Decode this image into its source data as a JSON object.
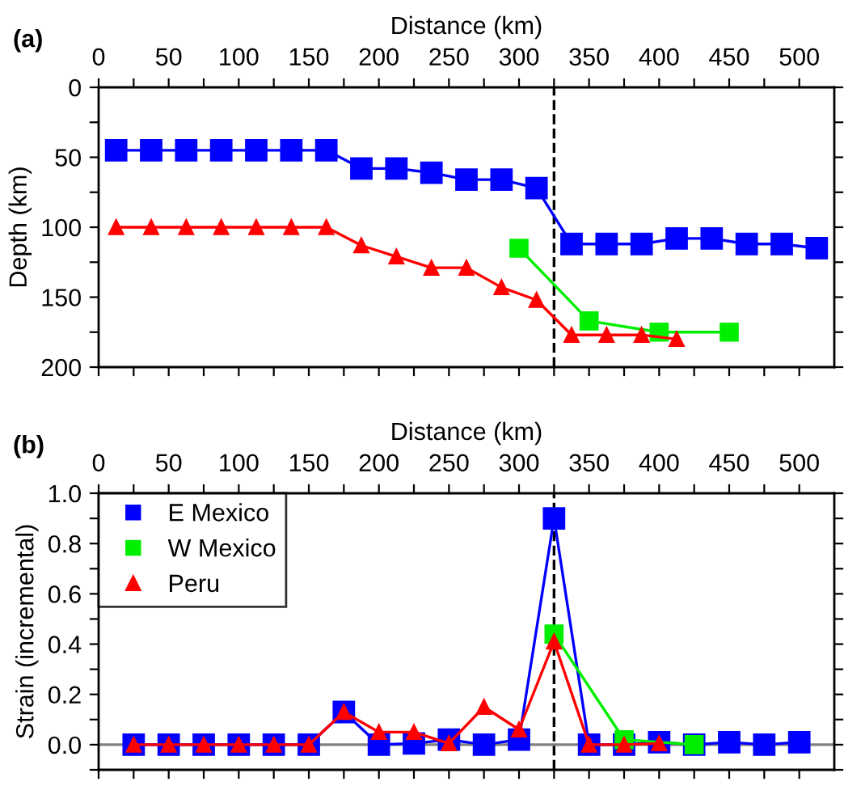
{
  "chart_data": [
    {
      "type": "line",
      "title": "(a)",
      "xlabel": "Distance (km)",
      "ylabel": "Depth (km)",
      "xlim": [
        0,
        525
      ],
      "ylim": [
        200,
        0
      ],
      "xticks": [
        0,
        {
          "value": 25,
          "label": null
        },
        50,
        {
          "value": 75,
          "label": null
        },
        100,
        {
          "value": 125,
          "label": null
        },
        150,
        {
          "value": 175,
          "label": null
        },
        200,
        {
          "value": 225,
          "label": null
        },
        250,
        {
          "value": 275,
          "label": null
        },
        300,
        {
          "value": 325,
          "label": null
        },
        350,
        {
          "value": 375,
          "label": null
        },
        400,
        {
          "value": 425,
          "label": null
        },
        450,
        {
          "value": 475,
          "label": null
        },
        500
      ],
      "yticks": [
        0,
        {
          "value": 25,
          "label": null
        },
        50,
        {
          "value": 75,
          "label": null
        },
        100,
        {
          "value": 125,
          "label": null
        },
        150,
        {
          "value": 175,
          "label": null
        },
        200
      ],
      "grid": false,
      "legend": false,
      "line_style": "solid",
      "ref_lines": [
        {
          "axis": "x",
          "value": 325,
          "color": "#000000",
          "line_style": "dashed"
        }
      ],
      "series": [
        {
          "color": "#0000ff",
          "marker": "square",
          "x": [
            12.5,
            37.5,
            62.5,
            87.5,
            112.5,
            137.5,
            162.5,
            187.5,
            212.5,
            237.5,
            262.5,
            287.5,
            312.5,
            337.5,
            362.5,
            387.5,
            412.5,
            437.5,
            462.5,
            487.5,
            512.5
          ],
          "values": [
            45,
            45,
            45,
            45,
            45,
            45,
            45,
            58,
            58,
            61,
            66,
            66,
            72,
            112,
            112,
            112,
            108,
            108,
            112,
            112,
            115
          ]
        },
        {
          "color": "#00ee00",
          "marker": "square",
          "x": [
            300,
            350,
            400,
            450
          ],
          "values": [
            115,
            167,
            175,
            175
          ]
        },
        {
          "color": "#ff0000",
          "marker": "triangle",
          "x": [
            12.5,
            37.5,
            62.5,
            87.5,
            112.5,
            137.5,
            162.5,
            187.5,
            212.5,
            237.5,
            262.5,
            287.5,
            312.5,
            337.5,
            362.5,
            387.5,
            412.5
          ],
          "values": [
            100,
            100,
            100,
            100,
            100,
            100,
            100,
            113,
            121,
            129,
            129,
            143,
            152,
            177,
            177,
            177,
            180
          ]
        }
      ]
    },
    {
      "type": "line",
      "title": "(b)",
      "xlabel": "Distance (km)",
      "ylabel": "Strain (incremental)",
      "xlim": [
        0,
        525
      ],
      "ylim": [
        -0.1,
        1.0
      ],
      "xticks": [
        0,
        {
          "value": 25,
          "label": null
        },
        50,
        {
          "value": 75,
          "label": null
        },
        100,
        {
          "value": 125,
          "label": null
        },
        150,
        {
          "value": 175,
          "label": null
        },
        200,
        {
          "value": 225,
          "label": null
        },
        250,
        {
          "value": 275,
          "label": null
        },
        300,
        {
          "value": 325,
          "label": null
        },
        350,
        {
          "value": 375,
          "label": null
        },
        400,
        {
          "value": 425,
          "label": null
        },
        450,
        {
          "value": 475,
          "label": null
        },
        500
      ],
      "yticks": [
        {
          "value": -0.1,
          "label": null
        },
        {
          "value": 0,
          "label": "0.0"
        },
        {
          "value": 0.1,
          "label": null
        },
        0.2,
        {
          "value": 0.3,
          "label": null
        },
        0.4,
        {
          "value": 0.5,
          "label": null
        },
        0.6,
        {
          "value": 0.7,
          "label": null
        },
        0.8,
        {
          "value": 0.9,
          "label": null
        },
        {
          "value": 1.0,
          "label": "1.0"
        }
      ],
      "grid": false,
      "legend": "top left",
      "line_style": "solid",
      "ref_lines": [
        {
          "axis": "x",
          "value": 325,
          "color": "#000000",
          "line_style": "dashed"
        },
        {
          "axis": "y",
          "value": 0,
          "color": "#808080",
          "line_style": "solid"
        }
      ],
      "series": [
        {
          "name": "E Mexico",
          "color": "#0000ff",
          "marker": "square",
          "x": [
            25,
            50,
            75,
            100,
            125,
            150,
            175,
            200,
            225,
            250,
            275,
            300,
            325,
            350,
            375,
            400,
            425,
            450,
            475,
            500
          ],
          "values": [
            0,
            0,
            0,
            0,
            0,
            0,
            0.13,
            0,
            0.005,
            0.02,
            0,
            0.02,
            0.9,
            0,
            0,
            0.01,
            0,
            0.01,
            0,
            0.01
          ]
        },
        {
          "name": "W Mexico",
          "color": "#00ee00",
          "marker": "square",
          "x": [
            325,
            375,
            425
          ],
          "values": [
            0.44,
            0.02,
            0
          ]
        },
        {
          "name": "Peru",
          "color": "#ff0000",
          "marker": "triangle",
          "x": [
            25,
            50,
            75,
            100,
            125,
            150,
            175,
            200,
            225,
            250,
            275,
            300,
            325,
            350,
            375,
            400
          ],
          "values": [
            0,
            0,
            0,
            0,
            0,
            0,
            0.13,
            0.05,
            0.05,
            0.005,
            0.15,
            0.06,
            0.41,
            0,
            0,
            0.005
          ]
        }
      ]
    }
  ]
}
